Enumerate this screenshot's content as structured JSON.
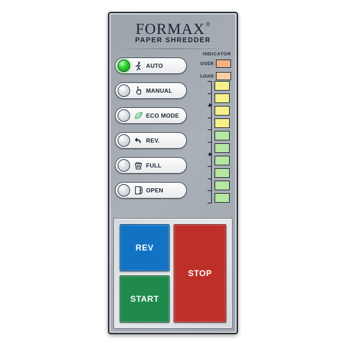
{
  "brand": "FORMAX",
  "subtitle": "PAPER SHREDDER",
  "modes": [
    {
      "label": "AUTO",
      "icon": "person-run",
      "on": true
    },
    {
      "label": "MANUAL",
      "icon": "hand-touch",
      "on": false
    },
    {
      "label": "ECO MODE",
      "icon": "leaf",
      "on": false
    },
    {
      "label": "REV.",
      "icon": "arrow-back",
      "on": false
    },
    {
      "label": "FULL",
      "icon": "bin-full",
      "on": false
    },
    {
      "label": "OPEN",
      "icon": "door-open",
      "on": false
    }
  ],
  "indicator": {
    "title": "INDICATOR",
    "rows": [
      {
        "label": "OVER",
        "color": "#f4b183"
      },
      {
        "label": "LOAD",
        "color": "#f6cfa6"
      }
    ]
  },
  "meter": {
    "colors": [
      "#f5f089",
      "#f5f089",
      "#f5f089",
      "#f5f089",
      "#b5e6a2",
      "#b5e6a2",
      "#b5e6a2",
      "#b5e6a2",
      "#b5e6a2",
      "#b5e6a2"
    ],
    "arrow_positions_pct": [
      20,
      60
    ],
    "ticks": 10
  },
  "buttons": {
    "rev": {
      "label": "REV",
      "bg": "#1273c4"
    },
    "start": {
      "label": "START",
      "bg": "#1f8a4c"
    },
    "stop": {
      "label": "STOP",
      "bg": "#bf2f2a"
    }
  },
  "panel_bg": "#a4aab2"
}
